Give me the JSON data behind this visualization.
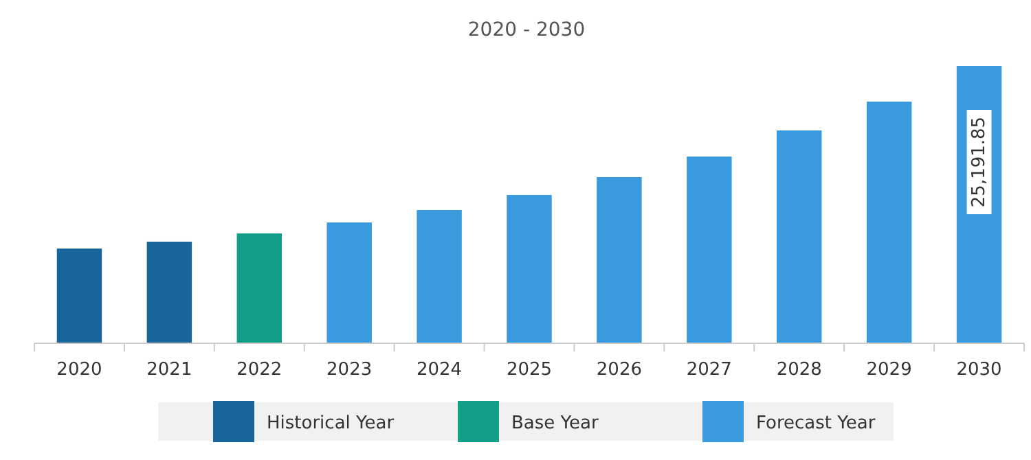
{
  "chart_data": {
    "type": "bar",
    "title": "2020 - 2030",
    "categories": [
      "2020",
      "2021",
      "2022",
      "2023",
      "2024",
      "2025",
      "2026",
      "2027",
      "2028",
      "2029",
      "2030"
    ],
    "series": [
      {
        "name": "Historical Year",
        "color": "#17659a",
        "values": [
          8605,
          9229,
          null,
          null,
          null,
          null,
          null,
          null,
          null,
          null,
          null
        ]
      },
      {
        "name": "Base Year",
        "color": "#139e8a",
        "values": [
          null,
          null,
          9977,
          null,
          null,
          null,
          null,
          null,
          null,
          null,
          null
        ]
      },
      {
        "name": "Forecast Year",
        "color": "#3a9ade",
        "values": [
          null,
          null,
          null,
          10974,
          12096,
          13469,
          15090,
          16960,
          19330,
          21949,
          25191.85
        ],
        "value_labels": [
          null,
          null,
          null,
          null,
          null,
          null,
          null,
          null,
          null,
          null,
          "25,191.85"
        ]
      }
    ],
    "legend": "bottom",
    "tick_labels": "x"
  }
}
